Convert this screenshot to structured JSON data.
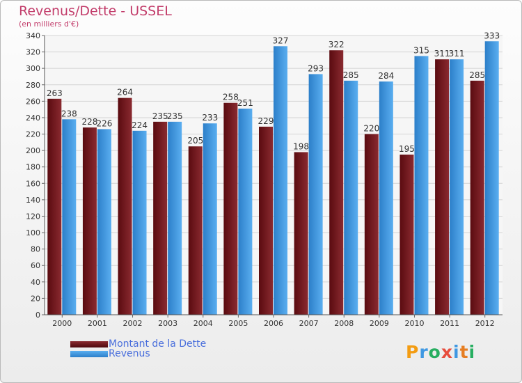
{
  "chart_data": {
    "type": "bar",
    "title": "Revenus/Dette - USSEL",
    "subtitle": "(en milliers d'€)",
    "categories": [
      "2000",
      "2001",
      "2002",
      "2003",
      "2004",
      "2005",
      "2006",
      "2007",
      "2008",
      "2009",
      "2010",
      "2011",
      "2012"
    ],
    "series": [
      {
        "name": "Montant de la Dette",
        "color": "#7a1a1f",
        "values": [
          263,
          228,
          264,
          235,
          205,
          258,
          229,
          198,
          322,
          220,
          195,
          311,
          285
        ]
      },
      {
        "name": "Revenus",
        "color": "#3f98e2",
        "values": [
          238,
          226,
          224,
          235,
          233,
          251,
          327,
          293,
          285,
          284,
          315,
          311,
          333
        ]
      }
    ],
    "ylim": [
      0,
      340
    ],
    "ytick_step": 20,
    "yticks": [
      "0",
      "20",
      "40",
      "60",
      "80",
      "100",
      "120",
      "140",
      "160",
      "180",
      "200",
      "220",
      "240",
      "260",
      "280",
      "300",
      "320",
      "340"
    ],
    "grid": true,
    "legend_position": "bottom-left"
  },
  "logo": {
    "text": "Proxiti",
    "colors": [
      "#f39c12",
      "#3f98e2",
      "#27ae60",
      "#e74c3c",
      "#3f98e2",
      "#e67e22",
      "#27ae60"
    ]
  }
}
